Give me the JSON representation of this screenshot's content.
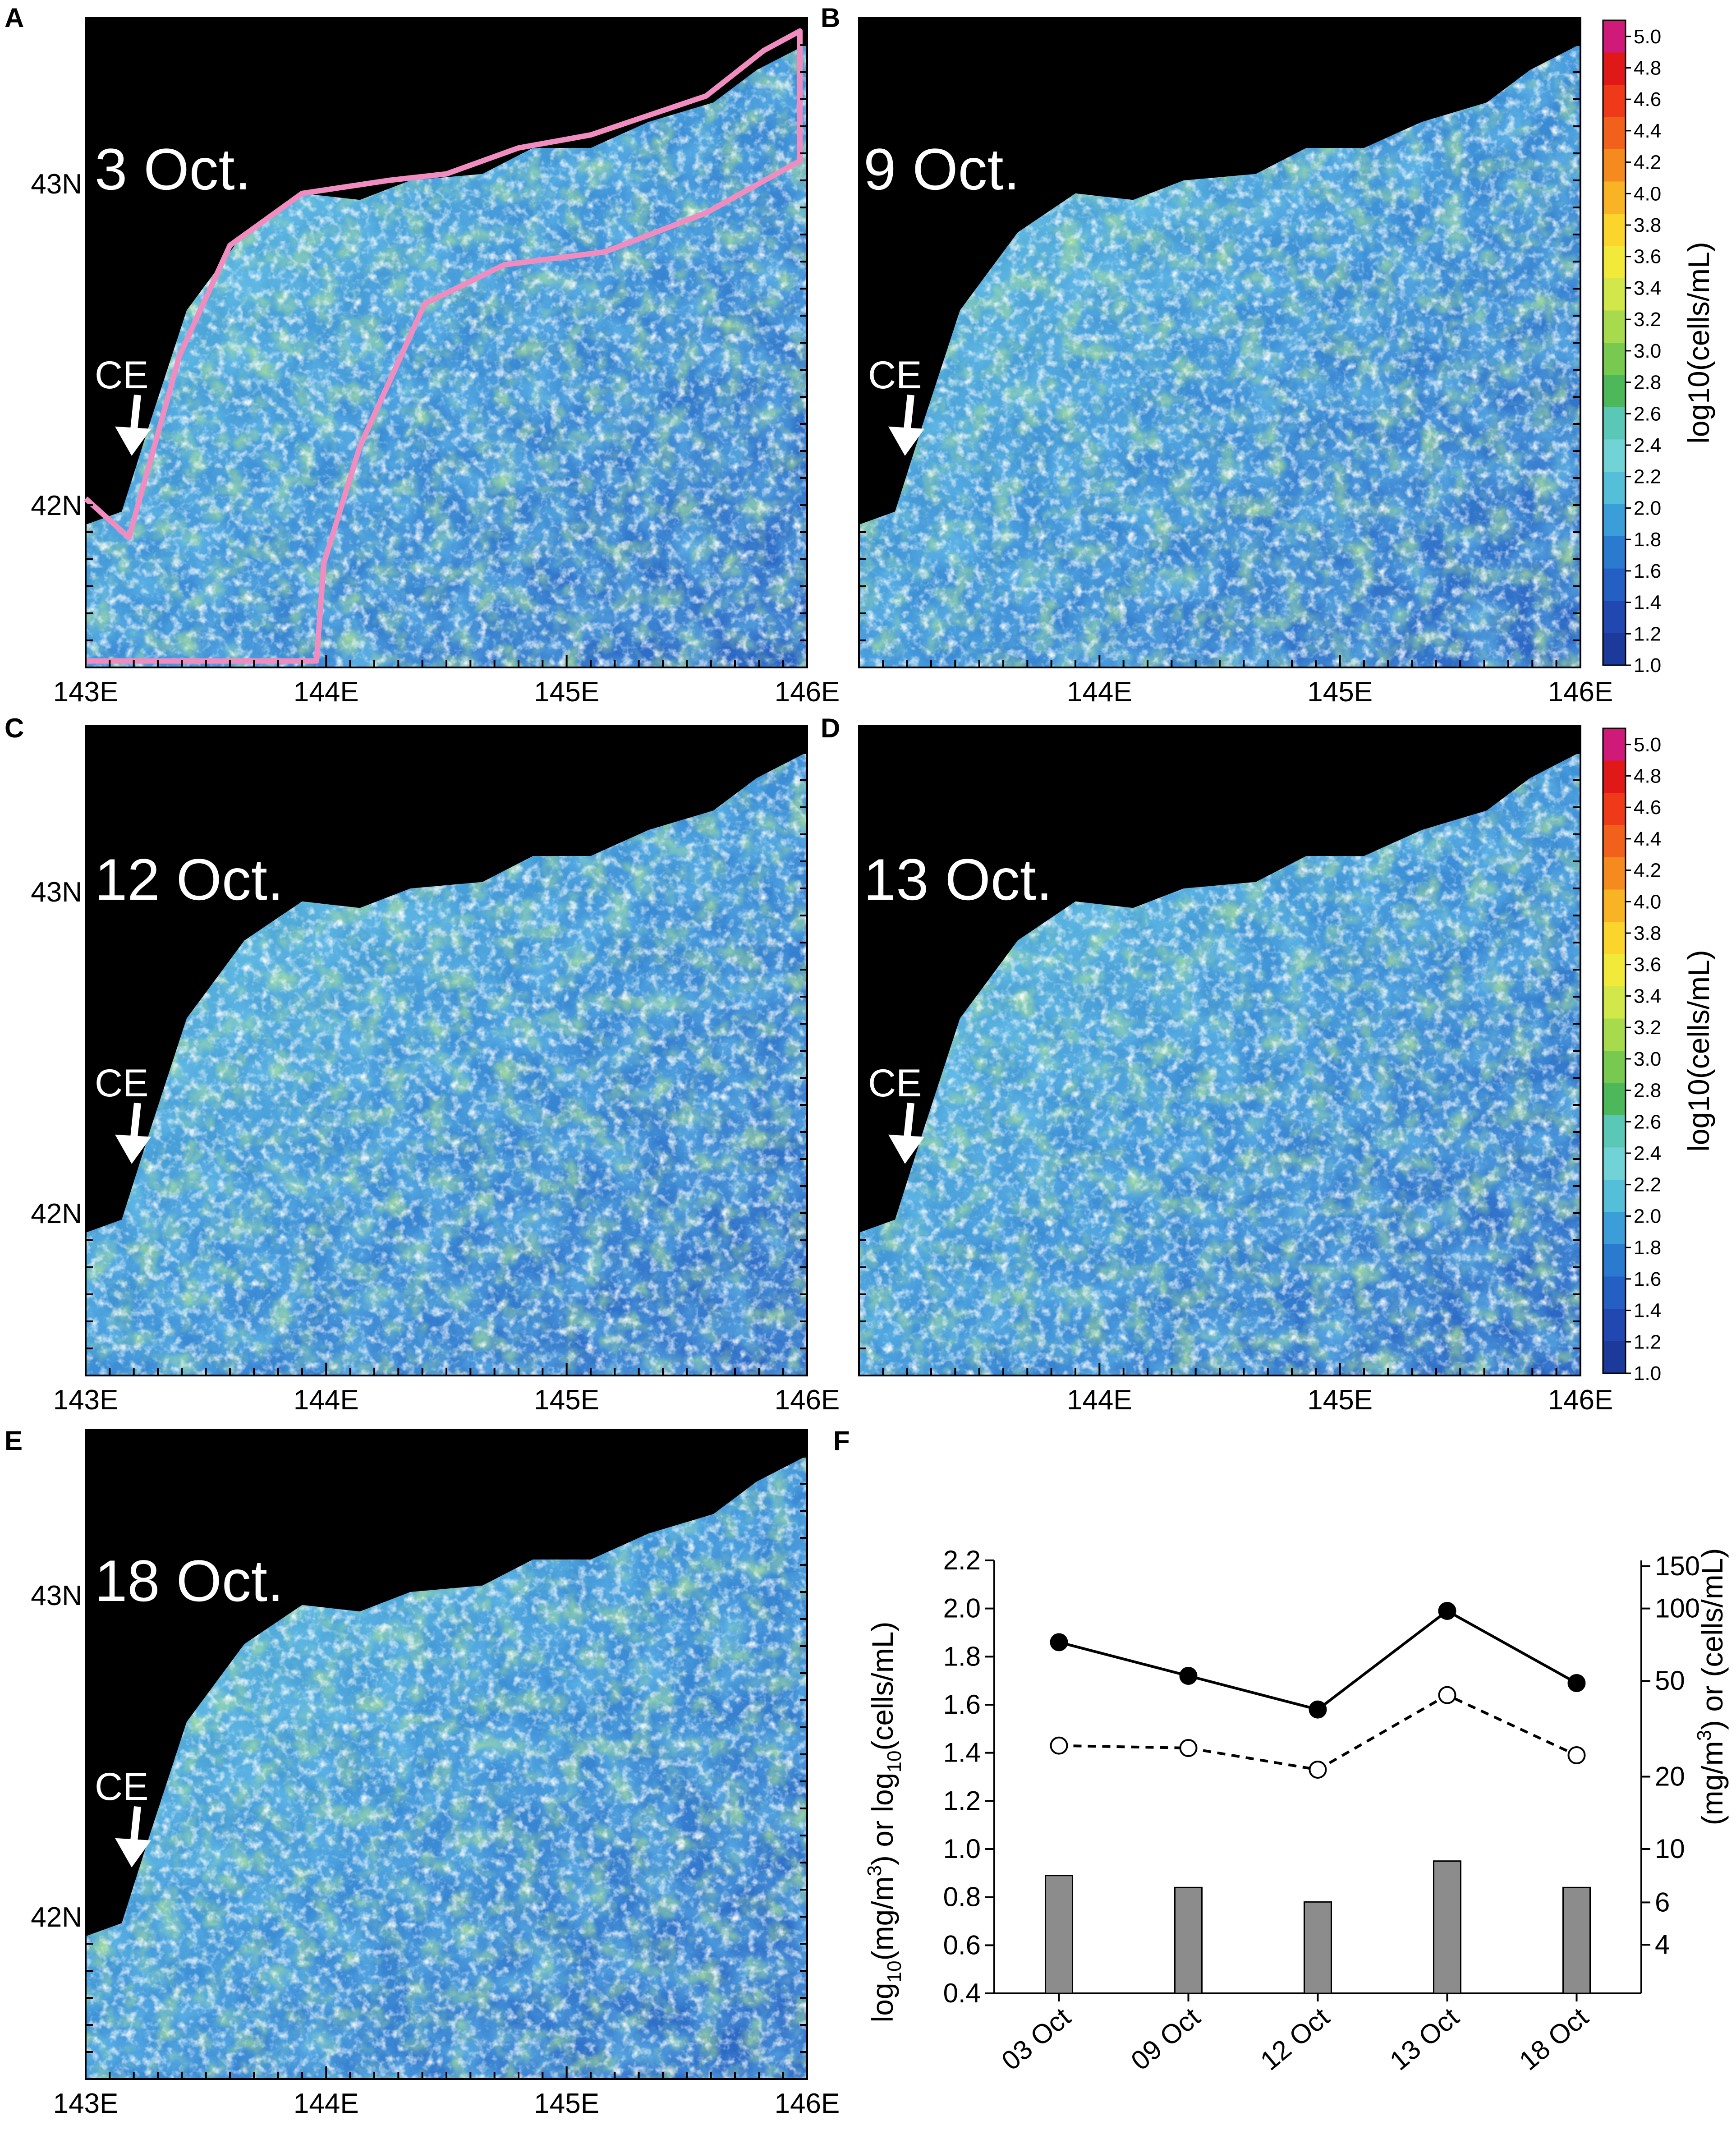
{
  "panels": [
    {
      "letter": "A",
      "date": "3 Oct."
    },
    {
      "letter": "B",
      "date": "9 Oct."
    },
    {
      "letter": "C",
      "date": "12 Oct."
    },
    {
      "letter": "D",
      "date": "13 Oct."
    },
    {
      "letter": "E",
      "date": "18 Oct."
    }
  ],
  "marker_label": "CE",
  "lon_labels": [
    "143E",
    "144E",
    "145E",
    "146E"
  ],
  "lon_labels_right": [
    "144E",
    "145E",
    "146E"
  ],
  "lat_labels": [
    "43N",
    "42N"
  ],
  "colorbar": {
    "title": "log10(cells/mL)",
    "ticks": [
      "5.0",
      "4.8",
      "4.6",
      "4.4",
      "4.2",
      "4.0",
      "3.8",
      "3.6",
      "3.4",
      "3.2",
      "3.0",
      "2.8",
      "2.6",
      "2.4",
      "2.2",
      "2.0",
      "1.8",
      "1.6",
      "1.4",
      "1.2",
      "1.0"
    ],
    "colors": [
      "#d01a7a",
      "#e01818",
      "#ef3a1a",
      "#f2611c",
      "#f58a1f",
      "#f8b424",
      "#fbd52c",
      "#f2ea3a",
      "#d2e84a",
      "#a7da4d",
      "#77c94f",
      "#4cb85a",
      "#5bc8b7",
      "#71d3d6",
      "#55bfd9",
      "#3b9ed8",
      "#2a7bd0",
      "#2460c4",
      "#2148b0",
      "#1c3a9c"
    ]
  },
  "panel_f": {
    "letter": "F",
    "left_axis_label_parts": [
      "log",
      "10",
      "(mg/m",
      "3",
      ") or log",
      "10",
      "(cells/mL)"
    ],
    "right_axis_label_parts": [
      "(mg/m",
      "3",
      ") or (cells/mL)"
    ],
    "left_ticks": [
      "2.2",
      "2.0",
      "1.8",
      "1.6",
      "1.4",
      "1.2",
      "1.0",
      "0.8",
      "0.6",
      "0.4"
    ],
    "right_ticks": [
      "150",
      "100",
      "50",
      "20",
      "10",
      "6",
      "4"
    ]
  },
  "chart_data": {
    "type": "bar",
    "categories": [
      "03 Oct",
      "09 Oct",
      "12 Oct",
      "13 Oct",
      "18 Oct"
    ],
    "series": [
      {
        "kind": "line-solid-filled-circles",
        "values": [
          1.86,
          1.72,
          1.58,
          1.99,
          1.69
        ]
      },
      {
        "kind": "line-dashed-open-circles",
        "values": [
          1.43,
          1.42,
          1.33,
          1.64,
          1.39
        ]
      },
      {
        "kind": "bar-gray",
        "values": [
          0.89,
          0.84,
          0.78,
          0.95,
          0.84
        ]
      }
    ],
    "ylim": [
      0.4,
      2.2
    ],
    "y_ticks": [
      0.4,
      0.6,
      0.8,
      1.0,
      1.2,
      1.4,
      1.6,
      1.8,
      2.0,
      2.2
    ],
    "y2_scale": "log",
    "y2_ticks": [
      4,
      6,
      10,
      20,
      50,
      100,
      150
    ],
    "colors": {
      "line": "#000000",
      "bar": "#8c8c8c"
    }
  }
}
